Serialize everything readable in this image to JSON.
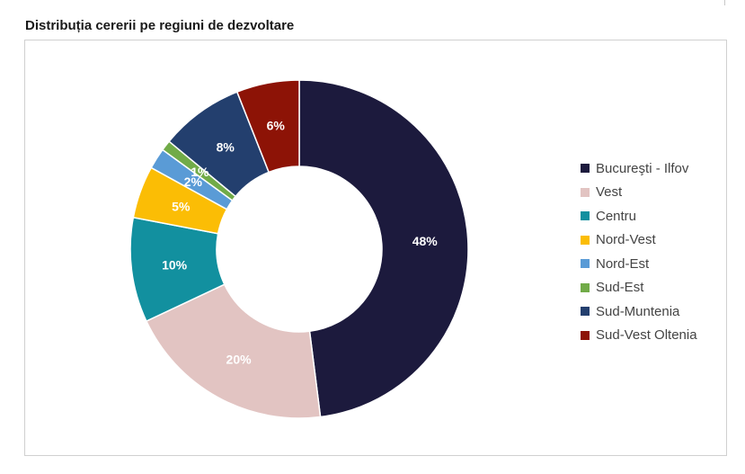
{
  "chart_data": {
    "type": "pie",
    "title": "Distribuția cererii pe regiuni de dezvoltare",
    "legend_position": "right",
    "categories": [
      "Bucureşti - Ilfov",
      "Vest",
      "Centru",
      "Nord-Vest",
      "Nord-Est",
      "Sud-Est",
      "Sud-Muntenia",
      "Sud-Vest Oltenia"
    ],
    "values": [
      48,
      20,
      10,
      5,
      2,
      1,
      8,
      6
    ],
    "labels": [
      "48%",
      "20%",
      "10%",
      "5%",
      "2%",
      "1%",
      "8%",
      "6%"
    ],
    "colors": [
      "#1c1a3d",
      "#e2c4c2",
      "#12909f",
      "#fbbd05",
      "#5a9bd6",
      "#71ab48",
      "#233f6e",
      "#8d1306"
    ]
  }
}
